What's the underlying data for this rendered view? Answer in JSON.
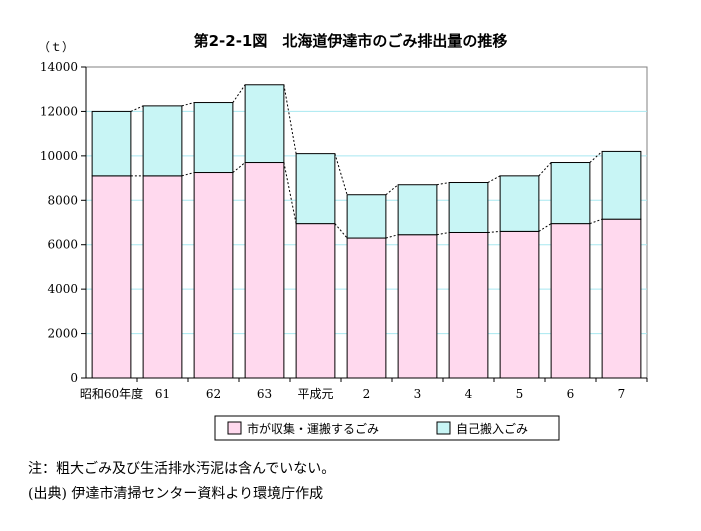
{
  "page": {
    "title": "第2-2-1図　北海道伊達市のごみ排出量の推移",
    "unit": "（ｔ）",
    "note1": "注：粗大ごみ及び生活排水汚泥は含んでいない。",
    "note2": "(出典) 伊達市清掃センター資料より環境庁作成"
  },
  "chart_data": {
    "type": "bar",
    "stacked": true,
    "title": "第2-2-1図　北海道伊達市のごみ排出量の推移",
    "ylabel": "（ｔ）",
    "ylim": [
      0,
      14000
    ],
    "yticks": [
      0,
      2000,
      4000,
      6000,
      8000,
      10000,
      12000,
      14000
    ],
    "grid": true,
    "legend_position": "bottom",
    "categories": [
      "昭和60年度",
      "61",
      "62",
      "63",
      "平成元",
      "2",
      "3",
      "4",
      "5",
      "6",
      "7"
    ],
    "series": [
      {
        "name": "市が収集・運搬するごみ",
        "color": "#FFD9EE",
        "values": [
          9100,
          9100,
          9250,
          9700,
          6950,
          6300,
          6450,
          6550,
          6600,
          6950,
          7150
        ]
      },
      {
        "name": "自己搬入ごみ",
        "color": "#C8F5F5",
        "values": [
          2900,
          3150,
          3150,
          3500,
          3150,
          1950,
          2250,
          2250,
          2500,
          2750,
          3050
        ]
      }
    ]
  }
}
